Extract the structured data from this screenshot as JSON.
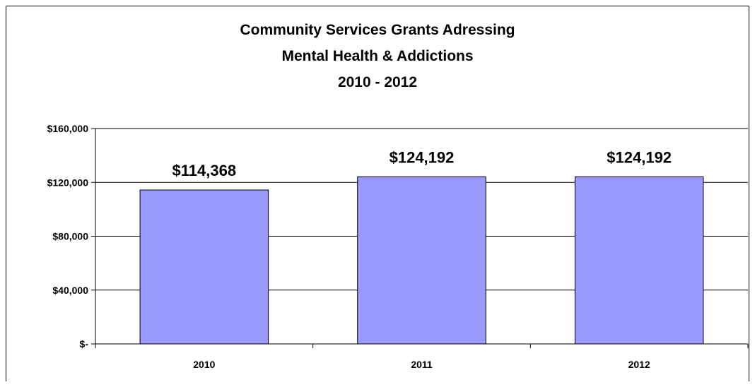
{
  "chart_data": {
    "type": "bar",
    "title_lines": [
      "Community Services Grants Adressing",
      "Mental Health & Addictions",
      "2010 - 2012"
    ],
    "categories": [
      "2010",
      "2011",
      "2012"
    ],
    "values": [
      114368,
      124192,
      124192
    ],
    "data_labels": [
      "$114,368",
      "$124,192",
      "$124,192"
    ],
    "ylim": [
      0,
      160000
    ],
    "yticks": [
      0,
      40000,
      80000,
      120000,
      160000
    ],
    "ytick_labels": [
      "$-",
      "$40,000",
      "$80,000",
      "$120,000",
      "$160,000"
    ],
    "bar_color": "#9999FF",
    "grid": true,
    "legend": "none"
  }
}
